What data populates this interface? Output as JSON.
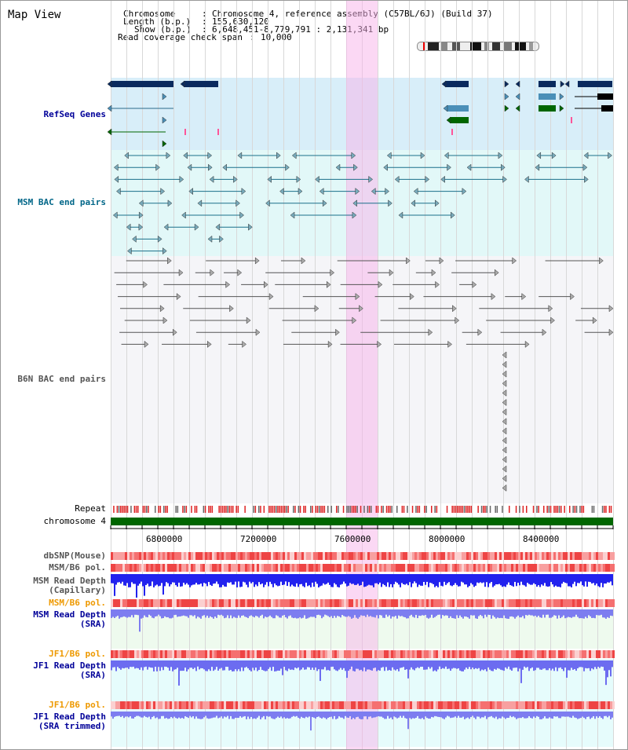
{
  "header": {
    "title": "Map View",
    "chromosome_label": "Chromosome",
    "chromosome_value": "Chromosome 4, reference assembly (C57BL/6J) (Build 37)",
    "length_label": "Length (b.p.)",
    "length_value": "155,630,120",
    "show_label": "Show (b.p.)",
    "show_value": "6,648,451-8,779,791 : 2,131,341 bp",
    "coverage_label": "Read coverage check span",
    "coverage_value": "10,000"
  },
  "tracks": {
    "refseq": "RefSeq Genes",
    "msm_bac": "MSM BAC end pairs",
    "b6n_bac": "B6N BAC end pairs",
    "repeat": "Repeat",
    "chromosome": "chromosome 4",
    "dbsnp": "dbSNP(Mouse)",
    "msm_b6_pol_1": "MSM/B6 pol.",
    "msm_depth_cap_1": "MSM Read Depth",
    "msm_depth_cap_2": "(Capillary)",
    "msm_b6_pol_2": "MSM/B6 pol.",
    "msm_depth_sra_1": "MSM Read Depth",
    "msm_depth_sra_2": "(SRA)",
    "jf1_b6_pol_1": "JF1/B6 pol.",
    "jf1_depth_sra_1": "JF1 Read Depth",
    "jf1_depth_sra_2": "(SRA)",
    "jf1_b6_pol_2": "JF1/B6 pol.",
    "jf1_depth_trim_1": "JF1 Read Depth",
    "jf1_depth_trim_2": "(SRA trimmed)"
  },
  "axis": {
    "ticks": [
      "6800000",
      "7200000",
      "7600000",
      "8000000",
      "8400000"
    ]
  },
  "colors": {
    "refseq_bg": "#d8eef9",
    "msm_bg": "#e2f8f8",
    "b6n_bg": "#f5f5f8",
    "highlight": "#f7b2ea",
    "gene_dark": "#0a2a5e",
    "gene_mid": "#4a8fb8",
    "gene_green": "#006600",
    "chromosome": "#006600",
    "depth_blue": "#2222ee",
    "depth_light": "#7d7df0",
    "pol_red": "#ee3333",
    "label_blue": "#000099",
    "label_teal": "#006688",
    "label_gray": "#555555",
    "label_orange": "#ee9900"
  }
}
